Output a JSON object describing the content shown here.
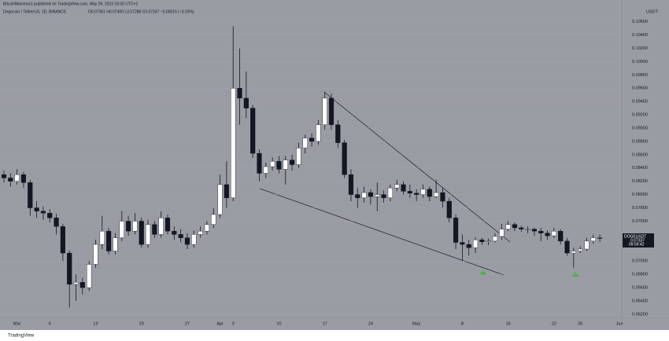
{
  "header": {
    "publisher": "BitcoinMaximus1 published on TradingView.com, May 29, 2023 16:00 UTC+2",
    "symbol": "Dogecoin / TetherUS, 1D, BINANCE",
    "ohlc": "O0.07351 H0.07400 L0.07288 C0.07337 −0.00015 (−0.20%)"
  },
  "footer": {
    "brand": "TradingView"
  },
  "chart_data": {
    "type": "candlestick",
    "y_unit": "USDT",
    "last_label": {
      "symbol": "DOGEUSDT",
      "price": "0.07337",
      "countdown": "09:59:42"
    },
    "up_color": "#ffffff",
    "down_color": "#131722",
    "categories": [
      null,
      null,
      "Mar",
      null,
      null,
      null,
      null,
      "6",
      null,
      null,
      null,
      null,
      null,
      null,
      "13",
      null,
      null,
      null,
      null,
      null,
      null,
      "20",
      null,
      null,
      null,
      null,
      null,
      null,
      "27",
      null,
      null,
      null,
      null,
      "Apr",
      null,
      "3",
      null,
      null,
      null,
      null,
      null,
      null,
      "10",
      null,
      null,
      null,
      null,
      null,
      null,
      "17",
      null,
      null,
      null,
      null,
      null,
      null,
      "24",
      null,
      null,
      null,
      null,
      null,
      null,
      "May",
      null,
      null,
      null,
      null,
      null,
      null,
      "8",
      null,
      null,
      null,
      null,
      null,
      null,
      "15",
      null,
      null,
      null,
      null,
      null,
      null,
      "22",
      null,
      null,
      null,
      "26",
      null,
      null,
      null,
      null,
      null,
      "Jun"
    ],
    "open": [
      0.083,
      0.0825,
      0.082,
      0.083,
      0.0818,
      0.078,
      0.0775,
      0.0772,
      0.0765,
      0.0752,
      0.0712,
      0.0665,
      0.0668,
      0.066,
      0.0695,
      0.0725,
      0.0745,
      0.0715,
      0.0735,
      0.076,
      0.0745,
      0.076,
      0.0725,
      0.0755,
      0.074,
      0.0765,
      0.0745,
      0.074,
      0.0735,
      0.0725,
      0.074,
      0.0745,
      0.0755,
      0.077,
      0.0815,
      0.0795,
      0.096,
      0.0945,
      0.093,
      0.0862,
      0.0832,
      0.0842,
      0.085,
      0.0838,
      0.0852,
      0.0845,
      0.087,
      0.0885,
      0.088,
      0.0905,
      0.0945,
      0.0905,
      0.0878,
      0.083,
      0.08,
      0.0795,
      0.0803,
      0.0797,
      0.08,
      0.0795,
      0.081,
      0.0815,
      0.0805,
      0.0802,
      0.08,
      0.0808,
      0.0797,
      0.0803,
      0.079,
      0.0765,
      0.0728,
      0.0725,
      0.072,
      0.0732,
      0.0729,
      0.073,
      0.0737,
      0.0748,
      0.0755,
      0.075,
      0.0748,
      0.0748,
      0.0745,
      0.0742,
      0.0738,
      0.0745,
      0.073,
      0.0712,
      0.0715,
      0.0718,
      0.073,
      0.0735,
      null,
      null,
      null
    ],
    "high": [
      0.0836,
      0.0832,
      0.0838,
      0.0834,
      0.0822,
      0.079,
      0.0782,
      0.0778,
      0.0771,
      0.0756,
      0.0716,
      0.068,
      0.0675,
      0.07,
      0.0732,
      0.0768,
      0.075,
      0.0742,
      0.0775,
      0.0768,
      0.0772,
      0.0765,
      0.0762,
      0.076,
      0.0775,
      0.077,
      0.0752,
      0.0748,
      0.0742,
      0.0746,
      0.0752,
      0.076,
      0.078,
      0.083,
      0.085,
      0.1053,
      0.102,
      0.0985,
      0.0935,
      0.0868,
      0.0848,
      0.0856,
      0.0858,
      0.0858,
      0.086,
      0.0878,
      0.089,
      0.0892,
      0.0912,
      0.0955,
      0.0952,
      0.0912,
      0.0882,
      0.0838,
      0.081,
      0.0812,
      0.0808,
      0.0818,
      0.0806,
      0.0815,
      0.0822,
      0.082,
      0.0815,
      0.0808,
      0.0815,
      0.0812,
      0.0822,
      0.081,
      0.0795,
      0.077,
      0.074,
      0.0732,
      0.0736,
      0.0735,
      0.0734,
      0.0742,
      0.0756,
      0.076,
      0.0758,
      0.0753,
      0.0752,
      0.075,
      0.075,
      0.0746,
      0.075,
      0.0748,
      0.0735,
      0.072,
      0.0722,
      0.0735,
      0.074,
      0.074,
      null,
      null,
      null
    ],
    "low": [
      0.0818,
      0.0812,
      0.0815,
      0.081,
      0.0768,
      0.0765,
      0.0762,
      0.0758,
      0.074,
      0.07,
      0.063,
      0.064,
      0.065,
      0.0655,
      0.069,
      0.0718,
      0.071,
      0.071,
      0.073,
      0.0738,
      0.074,
      0.072,
      0.072,
      0.0735,
      0.0735,
      0.074,
      0.0732,
      0.0728,
      0.0718,
      0.072,
      0.0735,
      0.074,
      0.075,
      0.0765,
      0.078,
      0.079,
      0.0905,
      0.0915,
      0.0855,
      0.082,
      0.0825,
      0.0836,
      0.0832,
      0.0815,
      0.0836,
      0.084,
      0.0862,
      0.0872,
      0.0875,
      0.0898,
      0.0898,
      0.087,
      0.0825,
      0.079,
      0.078,
      0.0788,
      0.0785,
      0.0775,
      0.0788,
      0.079,
      0.0805,
      0.08,
      0.0795,
      0.079,
      0.0795,
      0.079,
      0.0795,
      0.078,
      0.0758,
      0.0718,
      0.07,
      0.0708,
      0.0712,
      0.0724,
      0.0724,
      0.0728,
      0.0732,
      0.0745,
      0.0745,
      0.0744,
      0.0742,
      0.0738,
      0.073,
      0.0732,
      0.0735,
      0.0725,
      0.0708,
      0.069,
      0.0712,
      0.0715,
      0.0726,
      0.0729,
      null,
      null,
      null
    ],
    "close": [
      0.0825,
      0.082,
      0.083,
      0.0818,
      0.078,
      0.0775,
      0.0772,
      0.0765,
      0.0752,
      0.0712,
      0.0665,
      0.0668,
      0.066,
      0.0695,
      0.0725,
      0.0745,
      0.0715,
      0.0735,
      0.076,
      0.0745,
      0.076,
      0.0725,
      0.0755,
      0.074,
      0.0765,
      0.0745,
      0.074,
      0.0735,
      0.0725,
      0.074,
      0.0745,
      0.0755,
      0.077,
      0.0815,
      0.0795,
      0.096,
      0.0945,
      0.093,
      0.0862,
      0.0832,
      0.0842,
      0.085,
      0.0838,
      0.0852,
      0.0845,
      0.087,
      0.0885,
      0.088,
      0.0905,
      0.0945,
      0.0905,
      0.0878,
      0.083,
      0.08,
      0.0795,
      0.0803,
      0.0797,
      0.08,
      0.0795,
      0.081,
      0.0815,
      0.0805,
      0.0802,
      0.08,
      0.0808,
      0.0797,
      0.0803,
      0.079,
      0.0765,
      0.0728,
      0.0725,
      0.072,
      0.0732,
      0.0729,
      0.073,
      0.0737,
      0.0748,
      0.0755,
      0.075,
      0.0748,
      0.0748,
      0.0745,
      0.0742,
      0.0738,
      0.0745,
      0.073,
      0.0712,
      0.0715,
      0.0718,
      0.073,
      0.0735,
      0.0734,
      null,
      null,
      null
    ],
    "ylim": [
      0.0614,
      0.1069
    ],
    "yticks": [
      {
        "value": 0.062,
        "label": "0.06200"
      },
      {
        "value": 0.064,
        "label": "0.06400"
      },
      {
        "value": 0.066,
        "label": "0.06600"
      },
      {
        "value": 0.068,
        "label": "0.06800"
      },
      {
        "value": 0.07,
        "label": "0.07000"
      },
      {
        "value": 0.076,
        "label": "0.07600"
      },
      {
        "value": 0.078,
        "label": "0.07800"
      },
      {
        "value": 0.08,
        "label": "0.08000"
      },
      {
        "value": 0.082,
        "label": "0.08200"
      },
      {
        "value": 0.084,
        "label": "0.08400"
      },
      {
        "value": 0.086,
        "label": "0.08600"
      },
      {
        "value": 0.088,
        "label": "0.08800"
      },
      {
        "value": 0.09,
        "label": "0.09000"
      },
      {
        "value": 0.092,
        "label": "0.09200"
      },
      {
        "value": 0.094,
        "label": "0.09400"
      },
      {
        "value": 0.096,
        "label": "0.09600"
      },
      {
        "value": 0.098,
        "label": "0.09800"
      },
      {
        "value": 0.1,
        "label": "0.10000"
      },
      {
        "value": 0.102,
        "label": "0.10200"
      },
      {
        "value": 0.104,
        "label": "0.10400"
      },
      {
        "value": 0.106,
        "label": "0.10600"
      }
    ]
  }
}
